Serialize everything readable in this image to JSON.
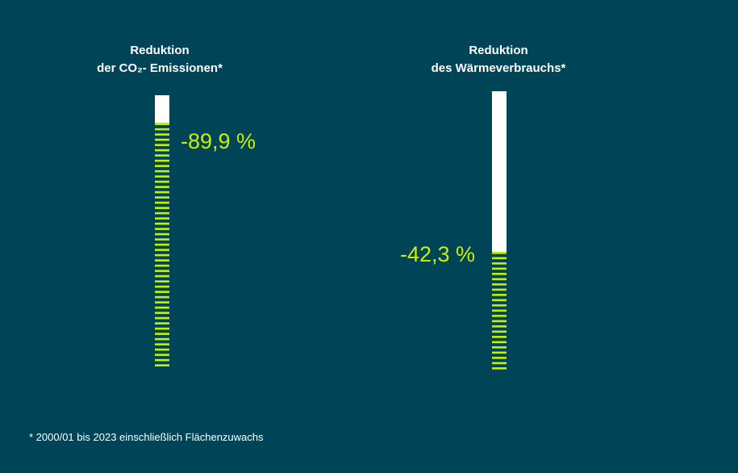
{
  "chart_data": [
    {
      "type": "bar",
      "title_lines": [
        "Reduktion",
        "der CO₂- Emissionen*"
      ],
      "value": -89.9,
      "value_label": "-89,9 %",
      "ylim": [
        0,
        100
      ]
    },
    {
      "type": "bar",
      "title_lines": [
        "Reduktion",
        "des Wärmeverbrauchs*"
      ],
      "value": -42.3,
      "value_label": "-42,3 %",
      "ylim": [
        0,
        100
      ]
    }
  ],
  "colors": {
    "background": "#004457",
    "remaining": "#ffffff",
    "reduction": "#c8f000",
    "text": "#ffffff"
  },
  "footnote": "* 2000/01 bis 2023 einschließlich Flächenzuwachs"
}
